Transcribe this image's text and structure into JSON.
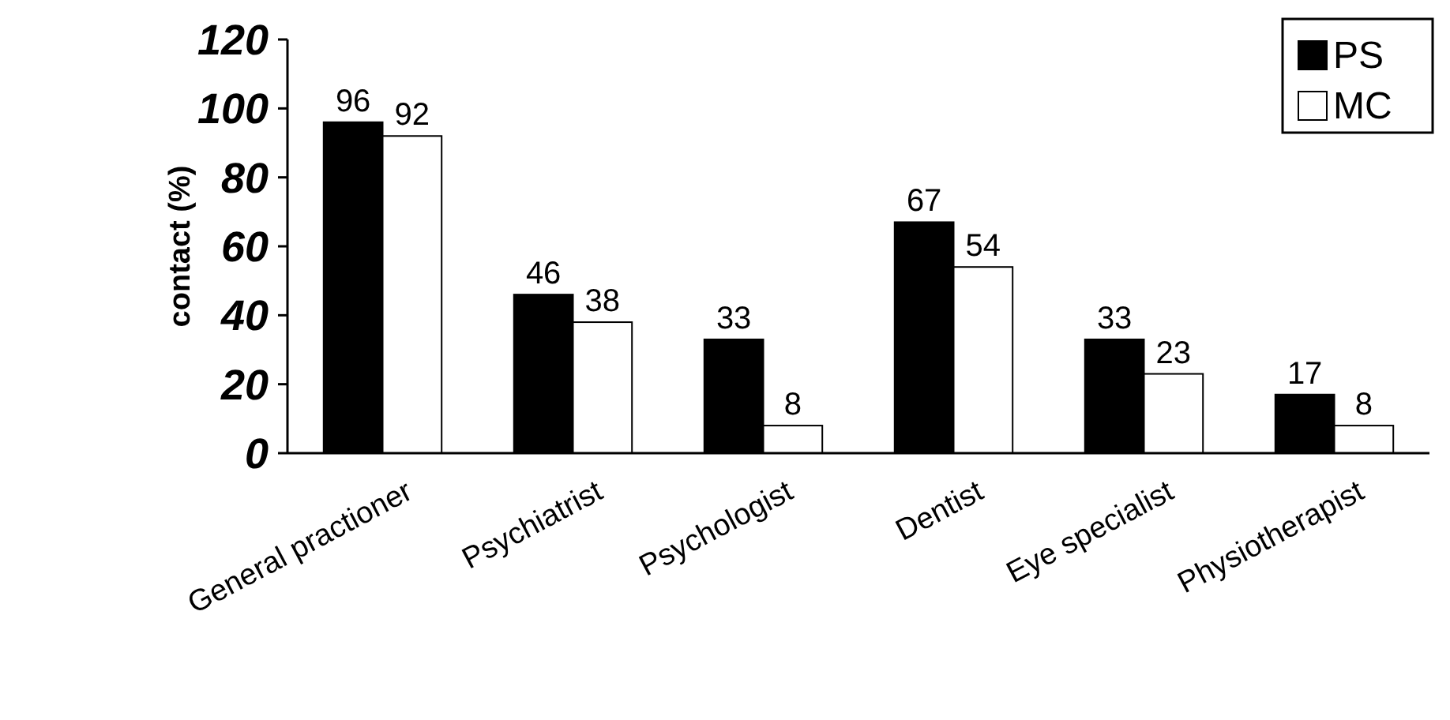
{
  "chart_data": {
    "type": "bar",
    "ylabel": "contact (%)",
    "categories": [
      "General practioner",
      "Psychiatrist",
      "Psychologist",
      "Dentist",
      "Eye specialist",
      "Physiotherapist"
    ],
    "series": [
      {
        "name": "PS",
        "color": "#000000",
        "values": [
          96,
          46,
          33,
          67,
          33,
          17
        ]
      },
      {
        "name": "MC",
        "color": "#ffffff",
        "values": [
          92,
          38,
          8,
          54,
          23,
          8
        ]
      }
    ],
    "ylim": [
      0,
      120
    ],
    "yticks": [
      0,
      20,
      40,
      60,
      80,
      100,
      120
    ],
    "data_labels": true,
    "grid": false,
    "legend": "top right"
  }
}
